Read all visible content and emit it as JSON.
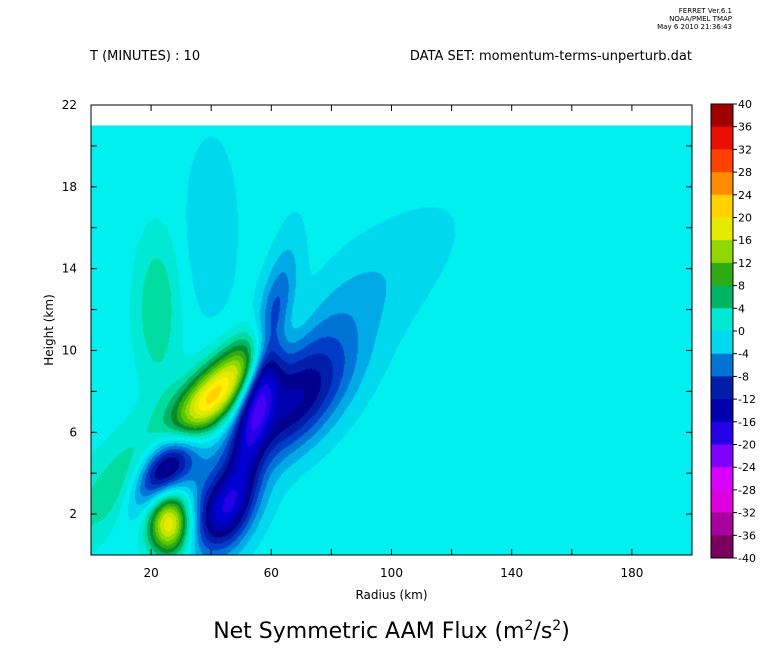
{
  "chart_data": {
    "type": "heatmap",
    "title": "Net Symmetric AAM Flux (m",
    "title_sup1": "2",
    "title_mid": "/s",
    "title_sup2": "2",
    "title_end": ")",
    "header_left": "T (MINUTES) : 10",
    "header_right": "DATA SET: momentum-terms-unperturb.dat",
    "stamp": [
      "FERRET Ver.6.1",
      "NOAA/PMEL TMAP",
      "May  6 2010 21:36:43"
    ],
    "xlabel": "Radius (km)",
    "ylabel": "Height (km)",
    "xlim": [
      0,
      200
    ],
    "ylim": [
      0,
      22
    ],
    "data_top": 21,
    "xticks": [
      20,
      60,
      100,
      140,
      180
    ],
    "yticks": [
      2,
      6,
      10,
      14,
      18,
      22
    ],
    "colorbar": {
      "levels": [
        40,
        36,
        32,
        28,
        24,
        20,
        16,
        12,
        8,
        4,
        0,
        -4,
        -8,
        -12,
        -16,
        -20,
        -24,
        -28,
        -32,
        -36,
        -40
      ],
      "range": [
        -40,
        40
      ],
      "background": "#00f0f0"
    },
    "features": [
      {
        "x": 36,
        "y": 7.0,
        "value": 27,
        "sx": 6,
        "sy": 3.0,
        "angle_deg": -38
      },
      {
        "x": 28,
        "y": 6.5,
        "value": 5,
        "sx": 10,
        "sy": 5.5,
        "angle_deg": -40
      },
      {
        "x": 25,
        "y": 4.8,
        "value": -29,
        "sx": 6,
        "sy": 1.7,
        "angle_deg": -28
      },
      {
        "x": 26,
        "y": 1.6,
        "value": 20,
        "sx": 5,
        "sy": 1.1,
        "angle_deg": 0
      },
      {
        "x": 44,
        "y": 2.2,
        "value": -15,
        "sx": 7,
        "sy": 1.6,
        "angle_deg": -20
      },
      {
        "x": 57,
        "y": 8.8,
        "value": -14,
        "sx": 4,
        "sy": 3.5,
        "angle_deg": -10
      },
      {
        "x": 68,
        "y": 7.3,
        "value": -11,
        "sx": 9,
        "sy": 2.4,
        "angle_deg": -35
      },
      {
        "x": 60,
        "y": 9.5,
        "value": -6,
        "sx": 13,
        "sy": 5.5,
        "angle_deg": -45
      },
      {
        "x": 22,
        "y": 12.0,
        "value": 5,
        "sx": 5,
        "sy": 2.5,
        "angle_deg": 0
      },
      {
        "x": 40,
        "y": 16.0,
        "value": -3,
        "sx": 6,
        "sy": 3.0,
        "angle_deg": 0
      }
    ]
  }
}
